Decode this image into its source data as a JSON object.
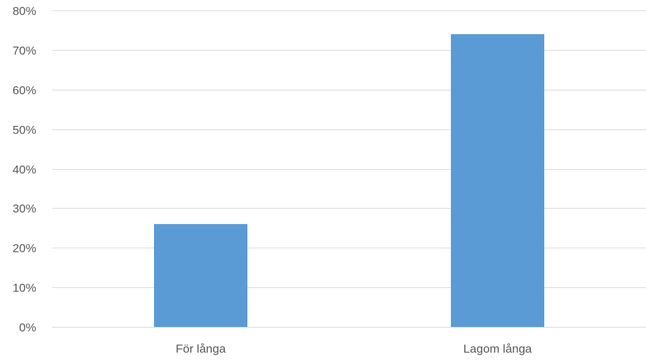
{
  "chart_data": {
    "type": "bar",
    "title": "",
    "xlabel": "",
    "ylabel": "",
    "categories": [
      "För långa",
      "Lagom långa"
    ],
    "values": [
      26,
      74
    ],
    "value_format": "percent",
    "ylim": [
      0,
      80
    ],
    "yticks": [
      0,
      10,
      20,
      30,
      40,
      50,
      60,
      70,
      80
    ],
    "ytick_labels": [
      "0%",
      "10%",
      "20%",
      "30%",
      "40%",
      "50%",
      "60%",
      "70%",
      "80%"
    ],
    "grid": true,
    "legend": "none",
    "colors": {
      "bar": "#5b9bd5",
      "grid": "#d9d9d9",
      "text": "#595959"
    }
  }
}
